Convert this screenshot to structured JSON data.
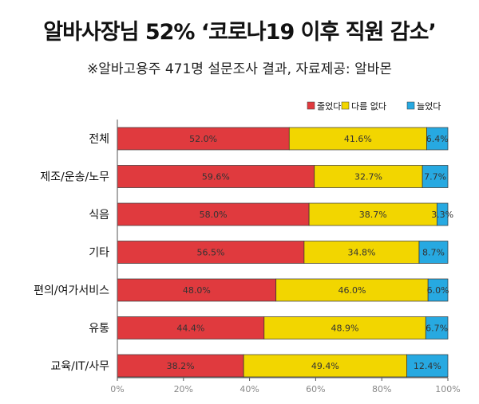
{
  "header": {
    "title": "알바사장님 52% ‘코로나19 이후 직원 감소’",
    "subtitle": "※알바고용주 471명 설문조사 결과, 자료제공: 알바몬"
  },
  "colors": {
    "decreased": "#e03a3e",
    "same": "#f2d600",
    "increased": "#27a9e1",
    "axis": "#555555",
    "grid": "#cccccc"
  },
  "chart_data": {
    "type": "bar",
    "orientation": "horizontal",
    "stacked": "percent",
    "categories": [
      "전체",
      "제조/운송/노무",
      "식음",
      "기타",
      "편의/여가서비스",
      "유통",
      "교육/IT/사무"
    ],
    "series": [
      {
        "name": "줄었다",
        "values": [
          52.0,
          59.6,
          58.0,
          56.5,
          48.0,
          44.4,
          38.2
        ],
        "labels": [
          "52.0%",
          "59.6%",
          "58.0%",
          "56.5%",
          "48.0%",
          "44.4%",
          "38.2%"
        ]
      },
      {
        "name": "다름 없다",
        "values": [
          41.6,
          32.7,
          38.7,
          34.8,
          46.0,
          48.9,
          49.4
        ],
        "labels": [
          "41.6%",
          "32.7%",
          "38.7%",
          "34.8%",
          "46.0%",
          "48.9%",
          "49.4%"
        ]
      },
      {
        "name": "늘었다",
        "values": [
          6.4,
          7.7,
          3.3,
          8.7,
          6.0,
          6.7,
          12.4
        ],
        "labels": [
          "6.4%",
          "7.7%",
          "3.3%",
          "8.7%",
          "6.0%",
          "6.7%",
          "12.4%"
        ]
      }
    ],
    "xlim": [
      0,
      100
    ],
    "xticks": [
      "0%",
      "20%",
      "40%",
      "60%",
      "80%",
      "100%"
    ],
    "legend_position": "top-right",
    "grid": false
  }
}
